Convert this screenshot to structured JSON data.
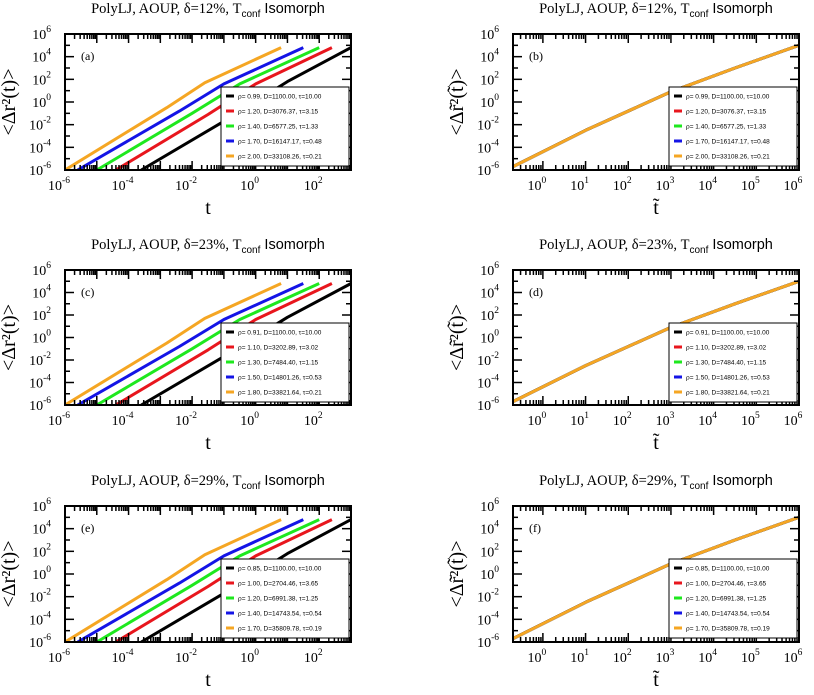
{
  "figure": {
    "titles": {
      "row_a": "PolyLJ, AOUP,  δ=12%, T",
      "row_b": "PolyLJ, AOUP,  δ=23%, T",
      "row_c": "PolyLJ, AOUP,  δ=29%, T",
      "sub": "conf",
      "tail": " Isomorph"
    },
    "xlabel_left": "t",
    "xlabel_right": "t̃",
    "ylabel_left": "<Δr²(t)>",
    "ylabel_right": "<Δr̃²(t̃)>",
    "colors": [
      "#000000",
      "#e8161d",
      "#1ee81e",
      "#1414e6",
      "#f5a623"
    ]
  },
  "chart_data": [
    {
      "type": "line",
      "panel": "(a)",
      "title": "PolyLJ, AOUP,  δ=12%, T_conf Isomorph",
      "xlabel": "t",
      "ylabel": "<Δr^2(t)>",
      "log_x": true,
      "log_y": true,
      "xlim_exp": [
        -6,
        3
      ],
      "ylim_exp": [
        -6,
        6
      ],
      "legend_position": "lower-right",
      "series": [
        {
          "name": "ρ= 0.99, D=1100.00,   τ=10.00",
          "color": "#000000",
          "points": [
            [
              -3.6,
              -6
            ],
            [
              -1,
              -1.7
            ],
            [
              1,
              1.8
            ],
            [
              3,
              4.8
            ]
          ]
        },
        {
          "name": "ρ= 1.20, D=3076.37,   τ=3.15",
          "color": "#e8161d",
          "points": [
            [
              -4.4,
              -6
            ],
            [
              -1.5,
              -1.1
            ],
            [
              0,
              1.6
            ],
            [
              2.4,
              4.8
            ]
          ]
        },
        {
          "name": "ρ= 1.40, D=6577.25,   τ=1.33",
          "color": "#1ee81e",
          "points": [
            [
              -5,
              -6
            ],
            [
              -2,
              -1
            ],
            [
              -0.5,
              1.6
            ],
            [
              2,
              4.8
            ]
          ]
        },
        {
          "name": "ρ= 1.70, D=16147.17, τ=0.48",
          "color": "#1414e6",
          "points": [
            [
              -5.6,
              -6
            ],
            [
              -2.4,
              -0.8
            ],
            [
              -1,
              1.6
            ],
            [
              1.5,
              4.8
            ]
          ]
        },
        {
          "name": "ρ= 2.00, D=33108.26, τ=0.21",
          "color": "#f5a623",
          "points": [
            [
              -6,
              -6
            ],
            [
              -2.8,
              -0.5
            ],
            [
              -1.6,
              1.7
            ],
            [
              0.8,
              4.8
            ]
          ]
        }
      ]
    },
    {
      "type": "line",
      "panel": "(b)",
      "title": "PolyLJ, AOUP,  δ=12%, T_conf Isomorph",
      "xlabel": "t̃",
      "ylabel": "<Δr̃^2(t̃)>",
      "log_x": true,
      "log_y": true,
      "xlim_exp": [
        -0.7,
        6
      ],
      "ylim_exp": [
        -6,
        6
      ],
      "legend_position": "lower-right",
      "series": [
        {
          "name": "ρ= 0.99, D=1100.00,   τ=10.00",
          "color": "#000000",
          "points": [
            [
              -0.7,
              -5.7
            ],
            [
              1,
              -2.5
            ],
            [
              3,
              0.9
            ],
            [
              4.5,
              3
            ],
            [
              6,
              5
            ]
          ]
        },
        {
          "name": "ρ= 1.20, D=3076.37,   τ=3.15",
          "color": "#e8161d",
          "points": [
            [
              -0.7,
              -5.7
            ],
            [
              1,
              -2.5
            ],
            [
              3,
              0.9
            ],
            [
              4.5,
              3
            ],
            [
              6,
              5
            ]
          ]
        },
        {
          "name": "ρ= 1.40, D=6577.25,   τ=1.33",
          "color": "#1ee81e",
          "points": [
            [
              -0.7,
              -5.7
            ],
            [
              1,
              -2.5
            ],
            [
              3,
              0.9
            ],
            [
              4.5,
              3
            ],
            [
              6,
              5
            ]
          ]
        },
        {
          "name": "ρ= 1.70, D=16147.17, τ=0.48",
          "color": "#1414e6",
          "points": [
            [
              -0.7,
              -5.7
            ],
            [
              1,
              -2.5
            ],
            [
              3,
              0.9
            ],
            [
              4.5,
              3
            ],
            [
              6,
              5
            ]
          ]
        },
        {
          "name": "ρ= 2.00, D=33108.26, τ=0.21",
          "color": "#f5a623",
          "points": [
            [
              -0.7,
              -5.7
            ],
            [
              1,
              -2.5
            ],
            [
              3,
              0.9
            ],
            [
              4.5,
              3
            ],
            [
              6,
              5
            ]
          ]
        }
      ]
    },
    {
      "type": "line",
      "panel": "(c)",
      "title": "PolyLJ, AOUP,  δ=23%, T_conf Isomorph",
      "xlabel": "t",
      "ylabel": "<Δr^2(t)>",
      "log_x": true,
      "log_y": true,
      "xlim_exp": [
        -6,
        3
      ],
      "ylim_exp": [
        -6,
        6
      ],
      "legend_position": "lower-right",
      "series": [
        {
          "name": "ρ= 0.91, D=1100.00,   τ=10.00",
          "color": "#000000",
          "points": [
            [
              -3.6,
              -6
            ],
            [
              -1,
              -1.7
            ],
            [
              1,
              1.8
            ],
            [
              3,
              4.8
            ]
          ]
        },
        {
          "name": "ρ= 1.10, D=3202.89,   τ=3.02",
          "color": "#e8161d",
          "points": [
            [
              -4.4,
              -6
            ],
            [
              -1.5,
              -1.1
            ],
            [
              0,
              1.6
            ],
            [
              2.4,
              4.8
            ]
          ]
        },
        {
          "name": "ρ= 1.30, D=7484.40,   τ=1.15",
          "color": "#1ee81e",
          "points": [
            [
              -5,
              -6
            ],
            [
              -2,
              -1
            ],
            [
              -0.5,
              1.6
            ],
            [
              2,
              4.8
            ]
          ]
        },
        {
          "name": "ρ= 1.50, D=14801.26, τ=0.53",
          "color": "#1414e6",
          "points": [
            [
              -5.6,
              -6
            ],
            [
              -2.4,
              -0.8
            ],
            [
              -1,
              1.6
            ],
            [
              1.5,
              4.8
            ]
          ]
        },
        {
          "name": "ρ= 1.80, D=33821.64, τ=0.21",
          "color": "#f5a623",
          "points": [
            [
              -6,
              -6
            ],
            [
              -2.8,
              -0.5
            ],
            [
              -1.6,
              1.7
            ],
            [
              0.8,
              4.8
            ]
          ]
        }
      ]
    },
    {
      "type": "line",
      "panel": "(d)",
      "title": "PolyLJ, AOUP,  δ=23%, T_conf Isomorph",
      "xlabel": "t̃",
      "ylabel": "<Δr̃^2(t̃)>",
      "log_x": true,
      "log_y": true,
      "xlim_exp": [
        -0.7,
        6
      ],
      "ylim_exp": [
        -6,
        6
      ],
      "legend_position": "lower-right",
      "series": [
        {
          "name": "ρ= 0.91, D=1100.00,   τ=10.00",
          "color": "#000000",
          "points": [
            [
              -0.7,
              -5.7
            ],
            [
              1,
              -2.5
            ],
            [
              3,
              0.9
            ],
            [
              4.5,
              3
            ],
            [
              6,
              5
            ]
          ]
        },
        {
          "name": "ρ= 1.10, D=3202.89,   τ=3.02",
          "color": "#e8161d",
          "points": [
            [
              -0.7,
              -5.7
            ],
            [
              1,
              -2.5
            ],
            [
              3,
              0.9
            ],
            [
              4.5,
              3
            ],
            [
              6,
              5
            ]
          ]
        },
        {
          "name": "ρ= 1.30, D=7484.40,   τ=1.15",
          "color": "#1ee81e",
          "points": [
            [
              -0.7,
              -5.7
            ],
            [
              1,
              -2.5
            ],
            [
              3,
              0.9
            ],
            [
              4.5,
              3
            ],
            [
              6,
              5
            ]
          ]
        },
        {
          "name": "ρ= 1.50, D=14801.26, τ=0.53",
          "color": "#1414e6",
          "points": [
            [
              -0.7,
              -5.7
            ],
            [
              1,
              -2.5
            ],
            [
              3,
              0.9
            ],
            [
              4.5,
              3
            ],
            [
              6,
              5
            ]
          ]
        },
        {
          "name": "ρ= 1.80, D=33821.64, τ=0.21",
          "color": "#f5a623",
          "points": [
            [
              -0.7,
              -5.7
            ],
            [
              1,
              -2.5
            ],
            [
              3,
              0.9
            ],
            [
              4.5,
              3
            ],
            [
              6,
              5
            ]
          ]
        }
      ]
    },
    {
      "type": "line",
      "panel": "(e)",
      "title": "PolyLJ, AOUP,  δ=29%, T_conf Isomorph",
      "xlabel": "t",
      "ylabel": "<Δr^2(t)>",
      "log_x": true,
      "log_y": true,
      "xlim_exp": [
        -6,
        3
      ],
      "ylim_exp": [
        -6,
        6
      ],
      "legend_position": "lower-right",
      "series": [
        {
          "name": "ρ= 0.85, D=1100.00,   τ=10.00",
          "color": "#000000",
          "points": [
            [
              -3.6,
              -6
            ],
            [
              -1,
              -1.7
            ],
            [
              1,
              1.8
            ],
            [
              3,
              4.8
            ]
          ]
        },
        {
          "name": "ρ= 1.00, D=2704.46,   τ=3.65",
          "color": "#e8161d",
          "points": [
            [
              -4.4,
              -6
            ],
            [
              -1.5,
              -1.1
            ],
            [
              0,
              1.6
            ],
            [
              2.4,
              4.8
            ]
          ]
        },
        {
          "name": "ρ= 1.20, D=6991.38,   τ=1.25",
          "color": "#1ee81e",
          "points": [
            [
              -5,
              -6
            ],
            [
              -2,
              -1
            ],
            [
              -0.5,
              1.6
            ],
            [
              2,
              4.8
            ]
          ]
        },
        {
          "name": "ρ= 1.40, D=14743.54, τ=0.54",
          "color": "#1414e6",
          "points": [
            [
              -5.6,
              -6
            ],
            [
              -2.4,
              -0.8
            ],
            [
              -1,
              1.6
            ],
            [
              1.5,
              4.8
            ]
          ]
        },
        {
          "name": "ρ= 1.70, D=35809.78, τ=0.19",
          "color": "#f5a623",
          "points": [
            [
              -6,
              -6
            ],
            [
              -2.8,
              -0.5
            ],
            [
              -1.6,
              1.7
            ],
            [
              0.8,
              4.8
            ]
          ]
        }
      ]
    },
    {
      "type": "line",
      "panel": "(f)",
      "title": "PolyLJ, AOUP,  δ=29%, T_conf Isomorph",
      "xlabel": "t̃",
      "ylabel": "<Δr̃^2(t̃)>",
      "log_x": true,
      "log_y": true,
      "xlim_exp": [
        -0.7,
        6
      ],
      "ylim_exp": [
        -6,
        6
      ],
      "legend_position": "lower-right",
      "series": [
        {
          "name": "ρ= 0.85, D=1100.00,   τ=10.00",
          "color": "#000000",
          "points": [
            [
              -0.7,
              -5.7
            ],
            [
              1,
              -2.5
            ],
            [
              3,
              0.9
            ],
            [
              4.5,
              3
            ],
            [
              6,
              5
            ]
          ]
        },
        {
          "name": "ρ= 1.00, D=2704.46,   τ=3.65",
          "color": "#e8161d",
          "points": [
            [
              -0.7,
              -5.7
            ],
            [
              1,
              -2.5
            ],
            [
              3,
              0.9
            ],
            [
              4.5,
              3
            ],
            [
              6,
              5
            ]
          ]
        },
        {
          "name": "ρ= 1.20, D=6991.38,   τ=1.25",
          "color": "#1ee81e",
          "points": [
            [
              -0.7,
              -5.7
            ],
            [
              1,
              -2.5
            ],
            [
              3,
              0.9
            ],
            [
              4.5,
              3
            ],
            [
              6,
              5
            ]
          ]
        },
        {
          "name": "ρ= 1.40, D=14743.54, τ=0.54",
          "color": "#1414e6",
          "points": [
            [
              -0.7,
              -5.7
            ],
            [
              1,
              -2.5
            ],
            [
              3,
              0.9
            ],
            [
              4.5,
              3
            ],
            [
              6,
              5
            ]
          ]
        },
        {
          "name": "ρ= 1.70, D=35809.78, τ=0.19",
          "color": "#f5a623",
          "points": [
            [
              -0.7,
              -5.7
            ],
            [
              1,
              -2.5
            ],
            [
              3,
              0.9
            ],
            [
              4.5,
              3
            ],
            [
              6,
              5
            ]
          ]
        }
      ]
    }
  ]
}
